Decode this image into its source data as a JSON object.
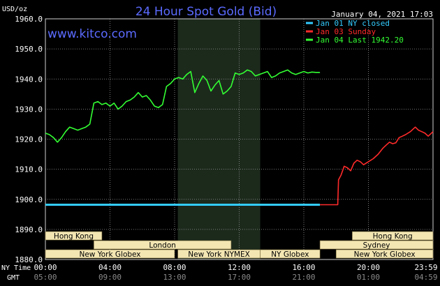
{
  "chart_data": {
    "type": "line",
    "title": "24 Hour Spot Gold (Bid)",
    "site": "www.kitco.com",
    "timestamp": "January 04, 2021 17:03",
    "unit_label": "USD/oz",
    "axis_caption_ny": "NY Time",
    "axis_caption_gmt": "GMT",
    "ylim": [
      1880,
      1960
    ],
    "y_ticks": [
      1880,
      1890,
      1900,
      1910,
      1920,
      1930,
      1940,
      1950,
      1960
    ],
    "y_tick_labels": [
      "1880.0",
      "1890.0",
      "1900.0",
      "1910.0",
      "1920.0",
      "1930.0",
      "1940.0",
      "1950.0",
      "1960.0"
    ],
    "xlim": [
      0,
      24
    ],
    "x_ticks": [
      0,
      4,
      8,
      12,
      16,
      20,
      24
    ],
    "x_tick_labels_ny": [
      "00:00",
      "04:00",
      "08:00",
      "12:00",
      "16:00",
      "20:00",
      "23:59"
    ],
    "x_tick_labels_gmt": [
      "05:00",
      "09:00",
      "13:00",
      "17:00",
      "21:00",
      "01:00",
      "04:59"
    ],
    "grid": true,
    "legend_position": "top-right",
    "shaded_region": [
      8.2,
      13.3
    ],
    "series": [
      {
        "name": "Jan 01 NY closed",
        "color": "#33ccff",
        "x": [
          0,
          17.0
        ],
        "y": [
          1898.2,
          1898.2
        ]
      },
      {
        "name": "Jan 03 Sunday",
        "color": "#ff2a2a",
        "x": [
          17.0,
          18.1,
          18.15,
          18.3,
          18.5,
          18.7,
          18.9,
          19.1,
          19.3,
          19.5,
          19.7,
          20.0,
          20.3,
          20.6,
          20.9,
          21.1,
          21.3,
          21.5,
          21.7,
          21.9,
          22.1,
          22.3,
          22.6,
          22.9,
          23.1,
          23.3,
          23.5,
          23.7,
          23.9,
          24.0
        ],
        "y": [
          1898.2,
          1898.2,
          1906.5,
          1908.0,
          1911.0,
          1910.5,
          1909.5,
          1912.0,
          1913.0,
          1912.5,
          1911.5,
          1912.5,
          1913.5,
          1915.0,
          1917.0,
          1918.0,
          1919.0,
          1918.5,
          1918.8,
          1920.5,
          1921.0,
          1921.5,
          1922.5,
          1924.0,
          1923.0,
          1922.5,
          1922.0,
          1921.0,
          1922.0,
          1922.5
        ]
      },
      {
        "name": "Jan 04 Last 1942.20",
        "color": "#33ff33",
        "x": [
          0,
          0.25,
          0.5,
          0.75,
          1.0,
          1.25,
          1.5,
          1.75,
          2.0,
          2.25,
          2.5,
          2.75,
          3.0,
          3.25,
          3.5,
          3.75,
          4.0,
          4.25,
          4.5,
          4.75,
          5.0,
          5.25,
          5.5,
          5.75,
          6.0,
          6.25,
          6.5,
          6.75,
          7.0,
          7.25,
          7.5,
          7.75,
          8.0,
          8.25,
          8.5,
          8.75,
          9.0,
          9.25,
          9.5,
          9.75,
          10.0,
          10.25,
          10.5,
          10.75,
          11.0,
          11.25,
          11.5,
          11.75,
          12.0,
          12.25,
          12.5,
          12.75,
          13.0,
          13.25,
          13.5,
          13.75,
          14.0,
          14.25,
          14.5,
          14.75,
          15.0,
          15.25,
          15.5,
          15.75,
          16.0,
          16.25,
          16.5,
          16.75,
          17.0
        ],
        "y": [
          1922.0,
          1921.5,
          1920.5,
          1919.0,
          1920.5,
          1922.5,
          1924.0,
          1923.5,
          1923.0,
          1923.5,
          1924.0,
          1925.0,
          1932.0,
          1932.5,
          1931.5,
          1932.0,
          1931.0,
          1932.0,
          1930.0,
          1931.0,
          1932.5,
          1933.0,
          1934.0,
          1935.5,
          1934.0,
          1934.5,
          1933.0,
          1931.0,
          1930.5,
          1931.5,
          1937.5,
          1938.5,
          1940.0,
          1940.5,
          1940.0,
          1941.5,
          1942.5,
          1935.5,
          1938.5,
          1941.0,
          1939.5,
          1936.0,
          1938.0,
          1939.5,
          1935.0,
          1936.0,
          1937.5,
          1942.0,
          1941.5,
          1942.0,
          1943.0,
          1942.5,
          1941.0,
          1941.5,
          1942.0,
          1942.5,
          1940.5,
          1941.0,
          1942.0,
          1942.5,
          1943.0,
          1942.0,
          1941.5,
          1942.0,
          1942.5,
          1942.0,
          1942.3,
          1942.2,
          1942.2
        ]
      }
    ],
    "sessions": [
      {
        "label": "Hong Kong",
        "start": 0,
        "end": 3.5,
        "row": 0
      },
      {
        "label": "Hong Kong",
        "start": 19.0,
        "end": 24,
        "row": 0
      },
      {
        "label": "London",
        "start": 3.0,
        "end": 11.5,
        "row": 1
      },
      {
        "label": "Sydney",
        "start": 17.0,
        "end": 24,
        "row": 1
      },
      {
        "label": "New York Globex",
        "start": 0,
        "end": 8.0,
        "row": 2
      },
      {
        "label": "New York NYMEX",
        "start": 8.2,
        "end": 13.3,
        "row": 2
      },
      {
        "label": "NY Globex",
        "start": 13.3,
        "end": 17.0,
        "row": 2
      },
      {
        "label": "New York Globex",
        "start": 18.0,
        "end": 24,
        "row": 2
      }
    ]
  }
}
